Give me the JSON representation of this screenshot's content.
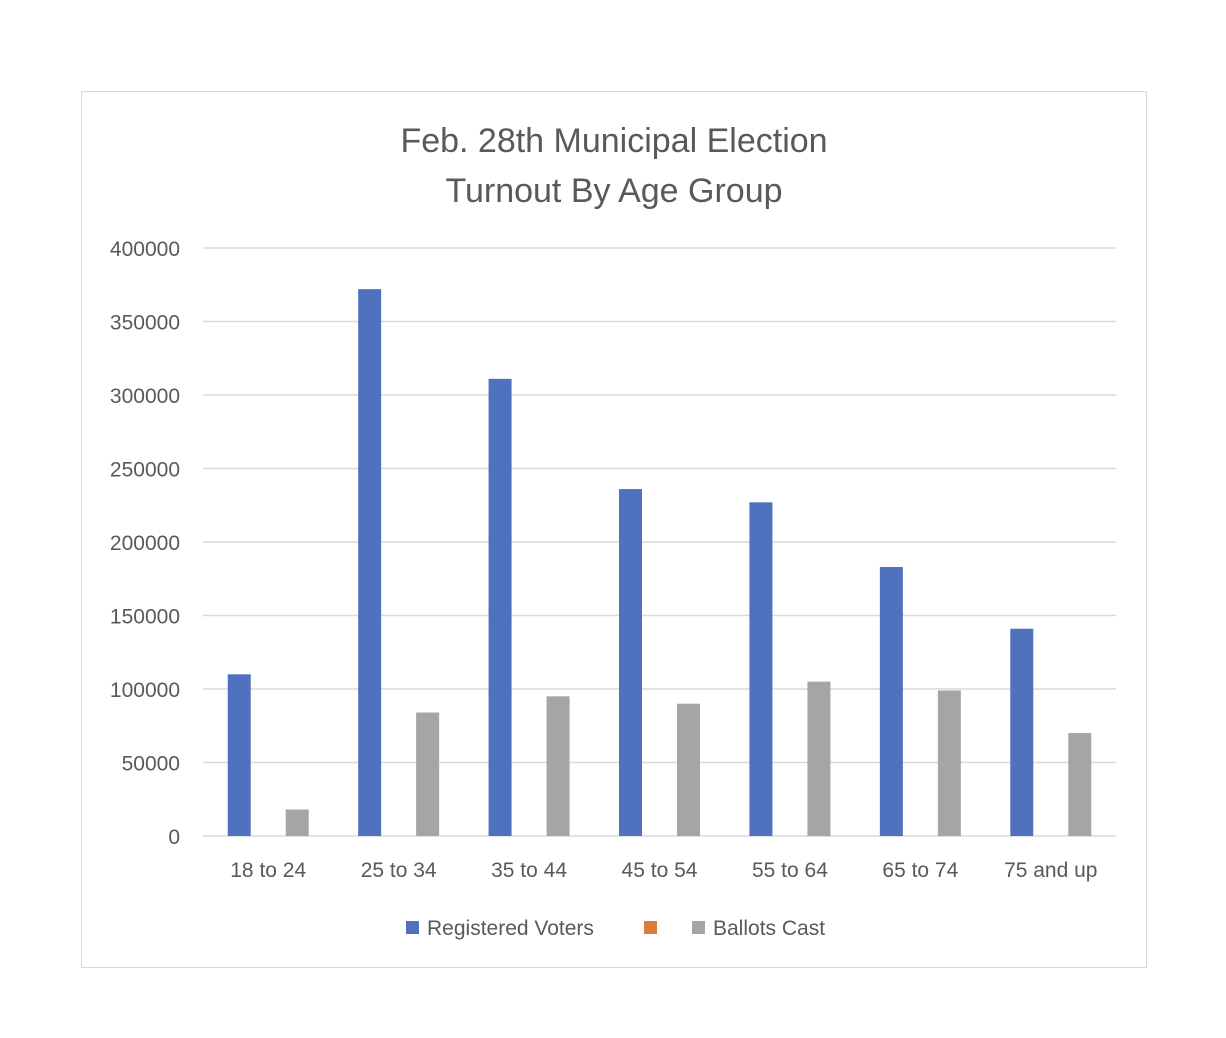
{
  "chart_data": {
    "type": "bar",
    "title_lines": [
      "Feb. 28th Municipal Election",
      "Turnout By Age Group"
    ],
    "categories": [
      "18 to 24",
      "25 to 34",
      "35 to 44",
      "45 to 54",
      "55 to 64",
      "65 to 74",
      "75 and up"
    ],
    "series": [
      {
        "name": "Registered Voters",
        "color": "#4f71be",
        "values": [
          110000,
          372000,
          311000,
          236000,
          227000,
          183000,
          141000
        ]
      },
      {
        "name": "",
        "color": "#e07b39",
        "values": [
          0,
          0,
          0,
          0,
          0,
          0,
          0
        ]
      },
      {
        "name": "Ballots Cast",
        "color": "#a5a5a5",
        "values": [
          18000,
          84000,
          95000,
          90000,
          105000,
          99000,
          70000
        ]
      }
    ],
    "ylim": [
      0,
      400000
    ],
    "yticks": [
      0,
      50000,
      100000,
      150000,
      200000,
      250000,
      300000,
      350000,
      400000
    ],
    "ytick_labels": [
      "0",
      "50000",
      "100000",
      "150000",
      "200000",
      "250000",
      "300000",
      "350000",
      "400000"
    ],
    "grid": true,
    "legend_position": "bottom",
    "xlabel": "",
    "ylabel": ""
  }
}
